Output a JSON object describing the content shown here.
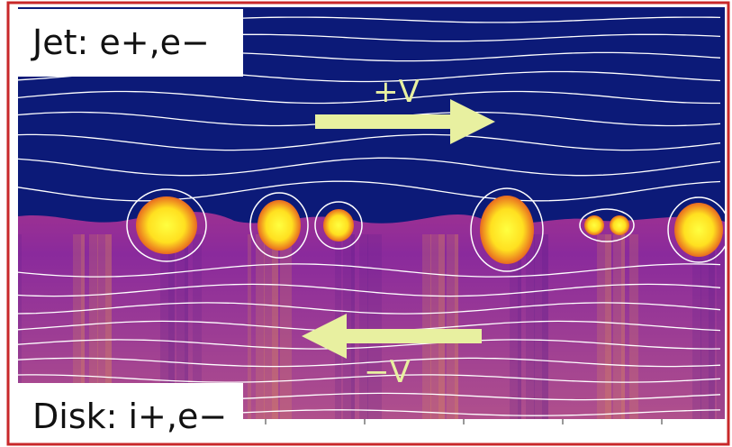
{
  "labels": {
    "top": "Jet: e+,e−",
    "bottom": "Disk: i+,e−",
    "plus_v": "+V",
    "minus_v": "−V"
  }
}
